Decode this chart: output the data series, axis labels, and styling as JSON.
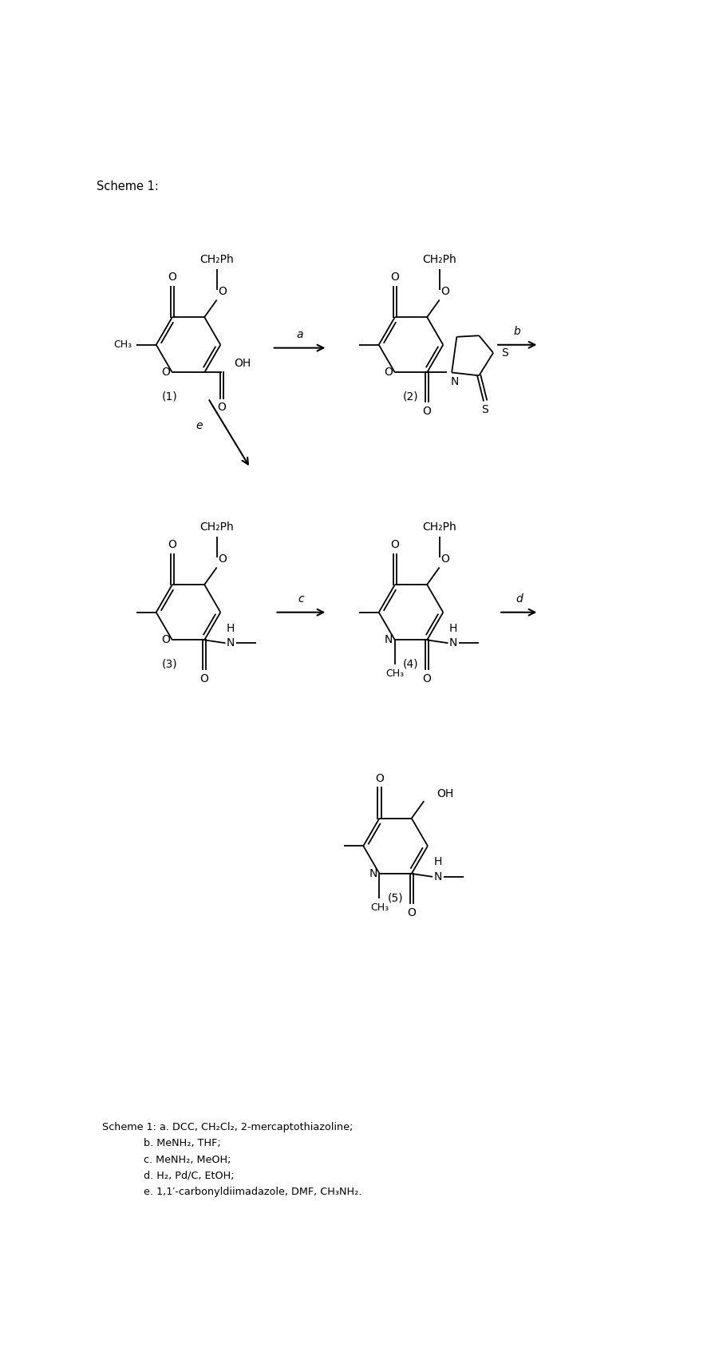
{
  "title": "Scheme 1:",
  "figsize": [
    8.96,
    17.18
  ],
  "dpi": 100,
  "footnotes": [
    [
      "Scheme 1: a. DCC, CH",
      "2",
      "Cl",
      "2",
      ", 2-mercaptothiazoline;"
    ],
    [
      "b. MeNH",
      "2",
      ", THF;"
    ],
    [
      "c. MeNH",
      "2",
      ", MeOH;"
    ],
    [
      "d. H",
      "2",
      ", Pd/C, EtOH;"
    ],
    [
      "e. 1,1′-carbonyldiimadazole, DMF, CH",
      "3",
      "NH",
      "2",
      "."
    ]
  ]
}
